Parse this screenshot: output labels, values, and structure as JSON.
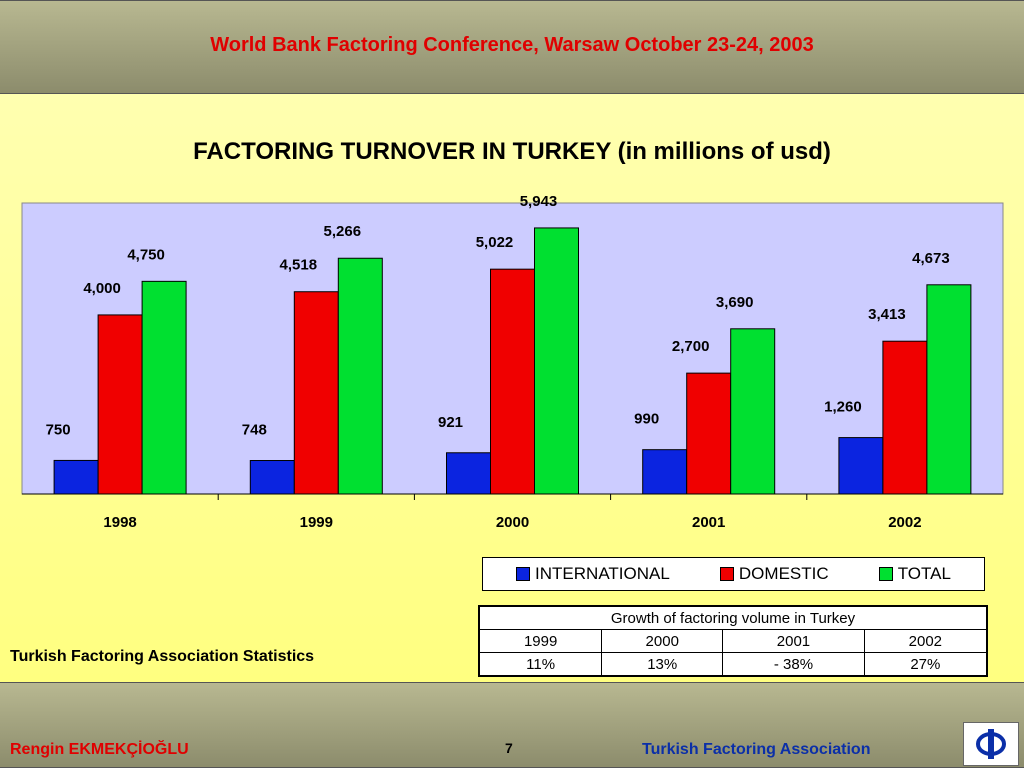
{
  "header": {
    "title": "World Bank Factoring  Conference, Warsaw October 23-24, 2003"
  },
  "chart_data": {
    "type": "bar",
    "title": "FACTORING TURNOVER IN TURKEY (in millions of usd)",
    "categories": [
      "1998",
      "1999",
      "2000",
      "2001",
      "2002"
    ],
    "series": [
      {
        "name": "INTERNATIONAL",
        "color": "#0b24e0",
        "values": [
          750,
          748,
          921,
          990,
          1260
        ],
        "labels": [
          "750",
          "748",
          "921",
          "990",
          "1,260"
        ]
      },
      {
        "name": "DOMESTIC",
        "color": "#f00000",
        "values": [
          4000,
          4518,
          5022,
          2700,
          3413
        ],
        "labels": [
          "4,000",
          "4,518",
          "5,022",
          "2,700",
          "3,413"
        ]
      },
      {
        "name": "TOTAL",
        "color": "#00e030",
        "values": [
          4750,
          5266,
          5943,
          3690,
          4673
        ],
        "labels": [
          "4,750",
          "5,266",
          "5,943",
          "3,690",
          "4,673"
        ]
      }
    ],
    "ylim": [
      0,
      6500
    ],
    "plot_background": "#ccccff",
    "legend_position": "bottom-right",
    "grid": false
  },
  "growth_table": {
    "title": "Growth of factoring volume in Turkey",
    "years": [
      "1999",
      "2000",
      "2001",
      "2002"
    ],
    "values": [
      "11%",
      "13%",
      "- 38%",
      "27%"
    ]
  },
  "source_note": "Turkish Factoring Association Statistics",
  "footer": {
    "author": "Rengin EKMEKÇİOĞLU",
    "page": "7",
    "organization": "Turkish Factoring Association",
    "logo_icon": "phi-logo-icon"
  }
}
